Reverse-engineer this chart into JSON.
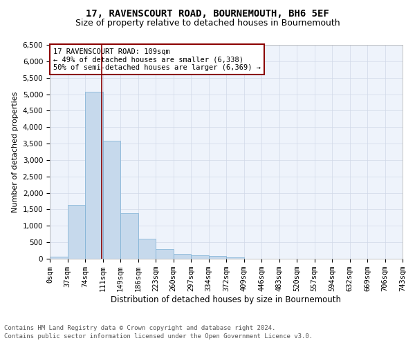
{
  "title1": "17, RAVENSCOURT ROAD, BOURNEMOUTH, BH6 5EF",
  "title2": "Size of property relative to detached houses in Bournemouth",
  "xlabel": "Distribution of detached houses by size in Bournemouth",
  "ylabel": "Number of detached properties",
  "footer1": "Contains HM Land Registry data © Crown copyright and database right 2024.",
  "footer2": "Contains public sector information licensed under the Open Government Licence v3.0.",
  "annotation_line1": "17 RAVENSCOURT ROAD: 109sqm",
  "annotation_line2": "← 49% of detached houses are smaller (6,338)",
  "annotation_line3": "50% of semi-detached houses are larger (6,369) →",
  "bar_values": [
    70,
    1630,
    5070,
    3580,
    1390,
    610,
    300,
    150,
    110,
    80,
    40,
    0,
    0,
    0,
    0,
    0,
    0,
    0,
    0,
    0
  ],
  "x_labels": [
    "0sqm",
    "37sqm",
    "74sqm",
    "111sqm",
    "149sqm",
    "186sqm",
    "223sqm",
    "260sqm",
    "297sqm",
    "334sqm",
    "372sqm",
    "409sqm",
    "446sqm",
    "483sqm",
    "520sqm",
    "557sqm",
    "594sqm",
    "632sqm",
    "669sqm",
    "706sqm",
    "743sqm"
  ],
  "bar_color": "#c6d9ec",
  "bar_edge_color": "#7bafd4",
  "vline_x": 2.95,
  "vline_color": "#8b0000",
  "annotation_box_color": "#8b0000",
  "ylim": [
    0,
    6500
  ],
  "yticks": [
    0,
    500,
    1000,
    1500,
    2000,
    2500,
    3000,
    3500,
    4000,
    4500,
    5000,
    5500,
    6000,
    6500
  ],
  "grid_color": "#d0d8e8",
  "bg_color": "#eef3fb",
  "title1_fontsize": 10,
  "title2_fontsize": 9,
  "xlabel_fontsize": 8.5,
  "ylabel_fontsize": 8,
  "tick_fontsize": 7.5,
  "footer_fontsize": 6.5,
  "annotation_fontsize": 7.5
}
